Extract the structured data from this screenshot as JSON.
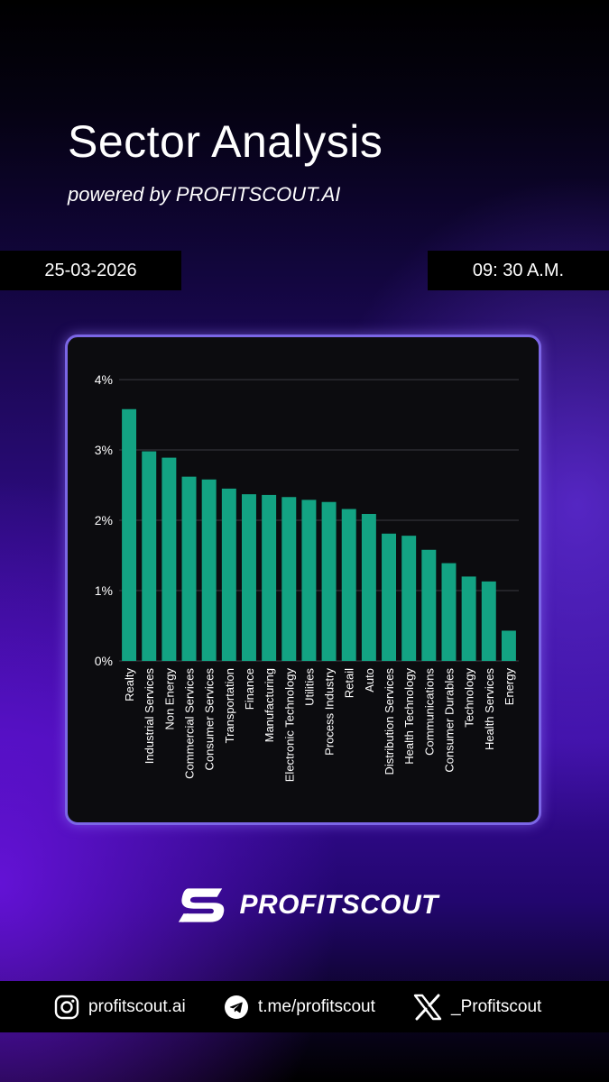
{
  "header": {
    "title": "Sector Analysis",
    "subtitle": "powered by PROFITSCOUT.AI",
    "date": "25-03-2026",
    "time": "09: 30 A.M."
  },
  "chart_data": {
    "type": "bar",
    "categories": [
      "Realty",
      "Industrial Services",
      "Non Energy",
      "Commercial Services",
      "Consumer Services",
      "Transportation",
      "Finance",
      "Manufacturing",
      "Electronic Technology",
      "Utilities",
      "Process Industry",
      "Retail",
      "Auto",
      "Distribution Services",
      "Health Technology",
      "Communications",
      "Consumer Durables",
      "Technology",
      "Health Services",
      "Energy"
    ],
    "values": [
      3.58,
      2.98,
      2.89,
      2.62,
      2.58,
      2.45,
      2.37,
      2.36,
      2.33,
      2.29,
      2.26,
      2.16,
      2.09,
      1.81,
      1.78,
      1.58,
      1.39,
      1.2,
      1.13,
      0.43
    ],
    "yticks": [
      "0%",
      "1%",
      "2%",
      "3%",
      "4%"
    ],
    "ylim": [
      0,
      4
    ],
    "grid": true,
    "bar_color": "#13a383"
  },
  "brand": {
    "name": "PROFITSCOUT"
  },
  "footer": {
    "instagram": "profitscout.ai",
    "telegram": "t.me/profitscout",
    "x": "_Profitscout"
  },
  "colors": {
    "accent": "#7b66e6",
    "card_bg": "#0c0c0f",
    "grid": "#3a3a40"
  }
}
